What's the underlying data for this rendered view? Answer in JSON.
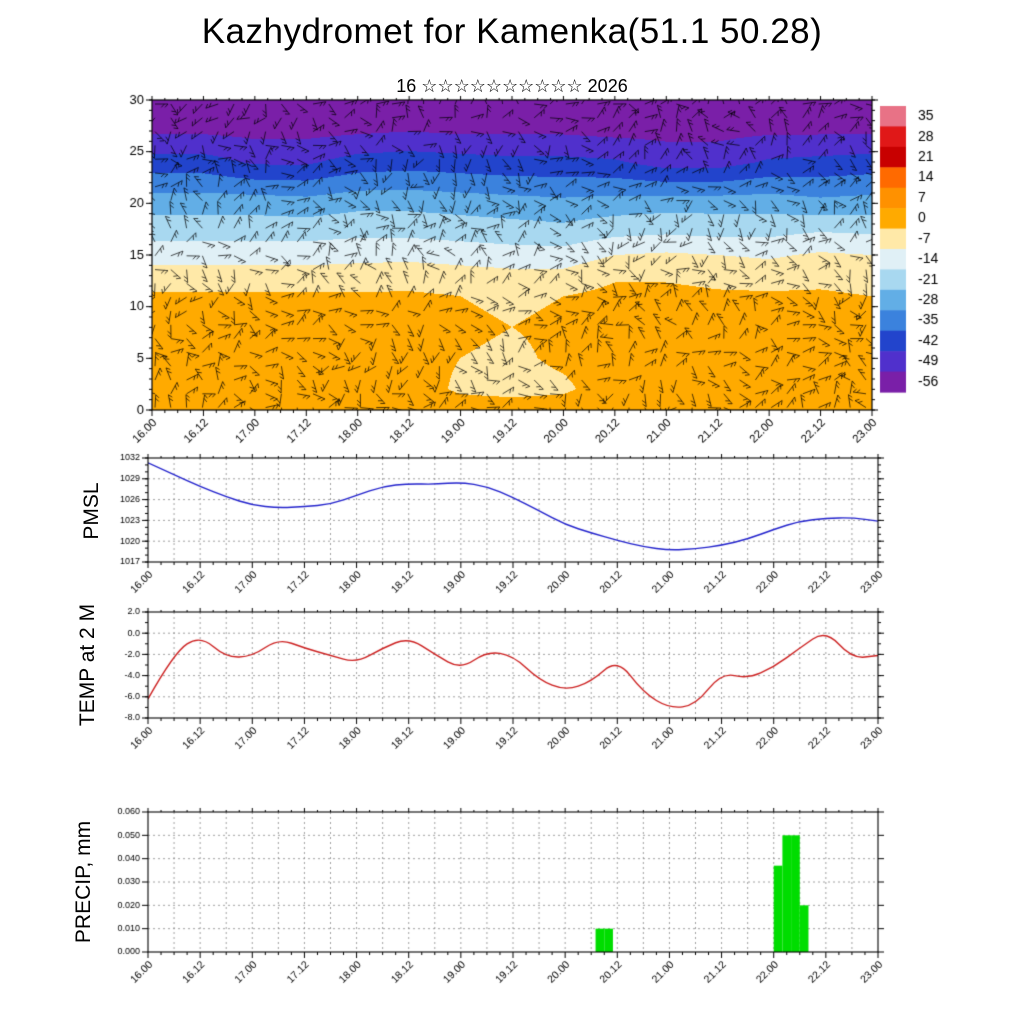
{
  "title": "Kazhydromet for Kamenka(51.1 50.28)",
  "subtitle": "16 ☆☆☆☆☆☆☆☆☆☆ 2026",
  "x_axis": {
    "tick_labels": [
      "16.00",
      "16.12",
      "17.00",
      "17.12",
      "18.00",
      "18.12",
      "19.00",
      "19.12",
      "20.00",
      "20.12",
      "21.00",
      "21.12",
      "22.00",
      "22.12",
      "23.00"
    ],
    "hours_span": 168,
    "major_step_hours": 12,
    "minor_step_hours": 3
  },
  "chart_data": [
    {
      "type": "heatmap",
      "name": "upper-air-temperature-wind-cross-section",
      "ylim": [
        0,
        30
      ],
      "yticks": [
        0,
        5,
        10,
        15,
        20,
        25,
        30
      ],
      "overlay": "wind-barbs",
      "levels": [
        0,
        2,
        5,
        8,
        11,
        13,
        15,
        17,
        20,
        24,
        27,
        30
      ],
      "times_hours": [
        0,
        12,
        24,
        36,
        48,
        60,
        72,
        84,
        96,
        108,
        120,
        132,
        144,
        156,
        168
      ],
      "columns": [
        [
          -3,
          -4,
          -5,
          -6,
          -6,
          -11,
          -17,
          -23,
          -31,
          -46,
          -57,
          -59
        ],
        [
          -3,
          -4,
          -5,
          -6,
          -6,
          -11,
          -17,
          -23,
          -31,
          -46,
          -57,
          -59
        ],
        [
          -3,
          -4,
          -5,
          -6,
          -6,
          -11,
          -17,
          -23,
          -31,
          -50,
          -58,
          -59
        ],
        [
          -3,
          -4,
          -5,
          -6,
          -6,
          -11,
          -17,
          -23,
          -32,
          -50,
          -58,
          -59
        ],
        [
          -3,
          -4,
          -5,
          -6,
          -6,
          -11,
          -16,
          -22,
          -30,
          -46,
          -57,
          -59
        ],
        [
          -3,
          -4,
          -5,
          -5,
          -6,
          -10,
          -16,
          -22,
          -30,
          -45,
          -56,
          -59
        ],
        [
          -4,
          -8,
          -7,
          -6,
          -7,
          -11,
          -17,
          -23,
          -31,
          -46,
          -57,
          -59
        ],
        [
          -4,
          -9,
          -8,
          -7,
          -8,
          -12,
          -18,
          -24,
          -32,
          -47,
          -57,
          -59
        ],
        [
          -4,
          -8,
          -6,
          -6,
          -7,
          -12,
          -18,
          -25,
          -33,
          -47,
          -57,
          -59
        ],
        [
          -3,
          -4,
          -4,
          -4,
          -5,
          -8,
          -14,
          -22,
          -32,
          -48,
          -58,
          -59
        ],
        [
          -3,
          -4,
          -4,
          -4,
          -5,
          -8,
          -13,
          -21,
          -31,
          -52,
          -58,
          -59
        ],
        [
          -3,
          -4,
          -5,
          -5,
          -6,
          -9,
          -14,
          -22,
          -31,
          -52,
          -58,
          -59
        ],
        [
          -3,
          -4,
          -5,
          -5,
          -6,
          -10,
          -15,
          -22,
          -31,
          -48,
          -57,
          -59
        ],
        [
          -3,
          -4,
          -5,
          -5,
          -6,
          -9,
          -13,
          -20,
          -33,
          -47,
          -57,
          -59
        ],
        [
          -3,
          -4,
          -5,
          -6,
          -7,
          -10,
          -14,
          -21,
          -32,
          -46,
          -57,
          -59
        ]
      ],
      "colorbar": {
        "labels": [
          35,
          28,
          21,
          14,
          7,
          0,
          -7,
          -14,
          -21,
          -28,
          -35,
          -42,
          -49,
          -56
        ],
        "colors": [
          "#e87286",
          "#e01818",
          "#c80000",
          "#ff6a00",
          "#ff9100",
          "#ffaa00",
          "#ffe9a8",
          "#e0f0f6",
          "#a8d8f0",
          "#62aee6",
          "#3b82dd",
          "#2244cc",
          "#5030cc",
          "#7a1fa8"
        ]
      }
    },
    {
      "type": "line",
      "name": "pmsl",
      "label": "PMSL",
      "color": "#2222cc",
      "ylim": [
        1017,
        1032
      ],
      "ytick_labels": [
        "1017",
        "1020",
        "1023",
        "1026",
        "1029",
        "1032"
      ],
      "y_minor_step": 1,
      "x_step_hours": 6,
      "values": [
        1031.3,
        1029.6,
        1027.9,
        1026.4,
        1025.2,
        1024.8,
        1025.0,
        1025.3,
        1026.6,
        1027.9,
        1028.3,
        1028.2,
        1028.5,
        1027.9,
        1026.3,
        1024.4,
        1022.4,
        1021.2,
        1020.1,
        1019.2,
        1018.7,
        1018.9,
        1019.4,
        1020.3,
        1021.7,
        1022.9,
        1023.3,
        1023.4,
        1022.9
      ]
    },
    {
      "type": "line",
      "name": "temp-2m",
      "label": "TEMP at 2 M",
      "color": "#cc2020",
      "ylim": [
        -8,
        2
      ],
      "ytick_labels": [
        "-8.0",
        "-6.0",
        "-4.0",
        "-2.0",
        "0.0",
        "2.0"
      ],
      "y_minor_step": 1,
      "x_step_hours": 6,
      "values": [
        -6.2,
        -1.8,
        -0.2,
        -2.3,
        -2.2,
        -0.5,
        -1.4,
        -2.1,
        -2.8,
        -1.4,
        -0.4,
        -2.0,
        -3.4,
        -1.7,
        -2.1,
        -4.4,
        -5.4,
        -4.6,
        -2.4,
        -5.6,
        -7.1,
        -6.8,
        -3.7,
        -4.3,
        -3.2,
        -1.4,
        0.3,
        -2.4,
        -2.1
      ]
    },
    {
      "type": "bar",
      "name": "precip",
      "label": "PRECIP, mm",
      "color": "#00dd00",
      "ylim": [
        0,
        0.06
      ],
      "ytick_labels": [
        "0.000",
        "0.010",
        "0.020",
        "0.030",
        "0.040",
        "0.050",
        "0.060"
      ],
      "bar_width_hours": 2,
      "bars": [
        {
          "hour": 104,
          "value": 0.01
        },
        {
          "hour": 106,
          "value": 0.01
        },
        {
          "hour": 145,
          "value": 0.037
        },
        {
          "hour": 147,
          "value": 0.05
        },
        {
          "hour": 149,
          "value": 0.05
        },
        {
          "hour": 151,
          "value": 0.02
        }
      ]
    }
  ]
}
